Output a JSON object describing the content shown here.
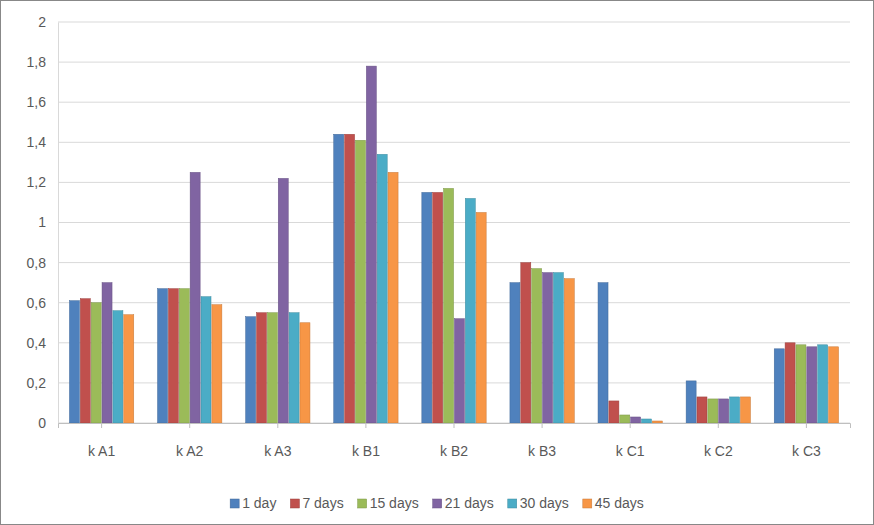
{
  "chart_data": {
    "type": "bar",
    "categories": [
      "k A1",
      "k A2",
      "k A3",
      "k B1",
      "k B2",
      "k B3",
      "k C1",
      "k C2",
      "k C3"
    ],
    "series": [
      {
        "name": "1 day",
        "color": "#4f81bd",
        "values": [
          0.61,
          0.67,
          0.53,
          1.44,
          1.15,
          0.7,
          0.7,
          0.21,
          0.37
        ]
      },
      {
        "name": "7 days",
        "color": "#c0504d",
        "values": [
          0.62,
          0.67,
          0.55,
          1.44,
          1.15,
          0.8,
          0.11,
          0.13,
          0.4
        ]
      },
      {
        "name": "15 days",
        "color": "#9bbb59",
        "values": [
          0.6,
          0.67,
          0.55,
          1.41,
          1.17,
          0.77,
          0.04,
          0.12,
          0.39
        ]
      },
      {
        "name": "21 days",
        "color": "#8064a2",
        "values": [
          0.7,
          1.25,
          1.22,
          1.78,
          0.52,
          0.75,
          0.03,
          0.12,
          0.38
        ]
      },
      {
        "name": "30 days",
        "color": "#4bacc6",
        "values": [
          0.56,
          0.63,
          0.55,
          1.34,
          1.12,
          0.75,
          0.02,
          0.13,
          0.39
        ]
      },
      {
        "name": "45 days",
        "color": "#f79646",
        "values": [
          0.54,
          0.59,
          0.5,
          1.25,
          1.05,
          0.72,
          0.01,
          0.13,
          0.38
        ]
      }
    ],
    "ylim": [
      0,
      2
    ],
    "yticks": [
      0,
      {
        "value": 0.2,
        "label": "0,2"
      },
      {
        "value": 0.4,
        "label": "0,4"
      },
      {
        "value": 0.6,
        "label": "0,6"
      },
      {
        "value": 0.8,
        "label": "0,8"
      },
      1,
      {
        "value": 1.2,
        "label": "1,2"
      },
      {
        "value": 1.4,
        "label": "1,4"
      },
      {
        "value": 1.6,
        "label": "1,6"
      },
      {
        "value": 1.8,
        "label": "1,8"
      },
      2
    ],
    "grid": true,
    "legend": "bottom"
  }
}
